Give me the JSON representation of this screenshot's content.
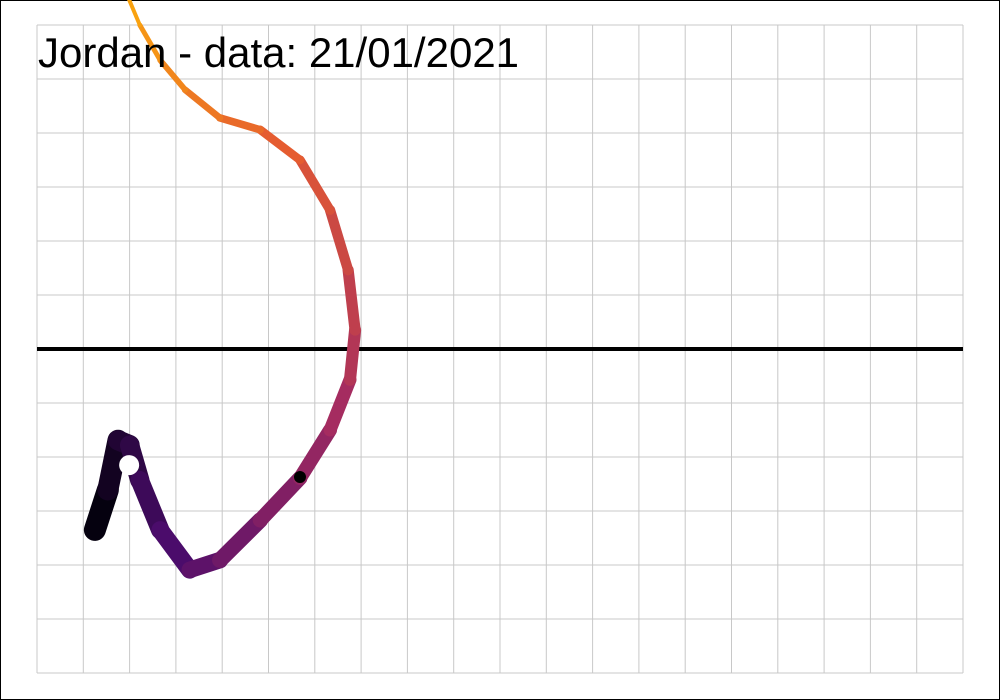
{
  "chart_data": {
    "type": "line",
    "title": "Jordan  - data: 21/01/2021",
    "x": [
      1.25,
      1.53,
      1.75,
      2.0,
      2.22,
      2.66,
      3.3,
      3.95,
      4.82,
      5.68,
      6.33,
      6.76,
      6.87,
      6.72,
      6.33,
      5.68,
      4.82,
      3.95,
      3.2,
      2.66,
      2.22,
      1.9
    ],
    "values": [
      -3.35,
      -2.61,
      -1.69,
      -1.78,
      -2.43,
      -3.35,
      -4.09,
      -3.91,
      -3.17,
      -2.39,
      -1.5,
      -0.57,
      0.35,
      1.46,
      2.57,
      3.5,
      4.06,
      4.28,
      4.8,
      5.35,
      6.0,
      6.65
    ],
    "colors": [
      "#05010f",
      "#4b0c6b",
      "#a52c60",
      "#e55c30",
      "#f9a20f"
    ],
    "markers": [
      {
        "x": 1.99,
        "y": -2.15,
        "color": "#ffffff"
      },
      {
        "x": 5.68,
        "y": -2.37,
        "color": "#000000"
      }
    ],
    "hline": 0,
    "xlim": [
      0,
      20
    ],
    "ylim": [
      -6,
      6
    ],
    "xticks": [
      0,
      1,
      2,
      3,
      4,
      5,
      6,
      7,
      8,
      9,
      10,
      11,
      12,
      13,
      14,
      15,
      16,
      17,
      18,
      19,
      20
    ],
    "yticks": [
      -6,
      -5,
      -4,
      -3,
      -2,
      -1,
      0,
      1,
      2,
      3,
      4,
      5,
      6
    ],
    "grid": true
  }
}
